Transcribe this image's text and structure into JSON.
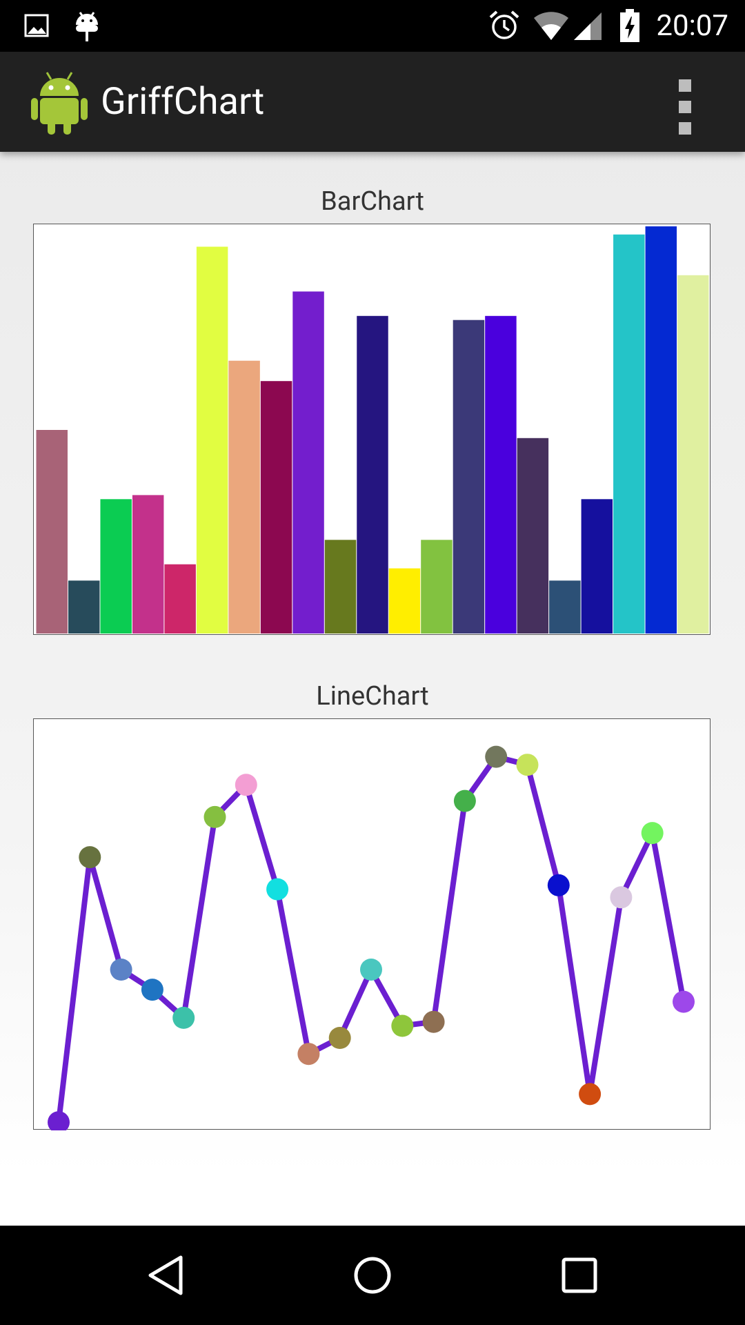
{
  "status_bar": {
    "time": "20:07",
    "icons": [
      "image-notification-icon",
      "android-debug-icon",
      "alarm-icon",
      "wifi-icon",
      "signal-icon",
      "battery-charging-icon"
    ]
  },
  "app_bar": {
    "title": "GriffChart",
    "launcher_icon": "android-robot-icon",
    "overflow_icon": "overflow-menu-icon"
  },
  "bar_chart": {
    "title": "BarChart",
    "chart_data": {
      "type": "bar",
      "title": "BarChart",
      "ylim": [
        0,
        100
      ],
      "values": [
        50,
        13,
        33,
        34,
        17,
        95,
        67,
        62,
        84,
        23,
        78,
        16,
        23,
        77,
        78,
        48,
        13,
        33,
        98,
        100,
        88
      ],
      "colors": [
        "#a86377",
        "#274b5b",
        "#0bcc52",
        "#c3318b",
        "#cd2669",
        "#e1fd41",
        "#eba77d",
        "#8c0850",
        "#731ecd",
        "#67791e",
        "#251580",
        "#ffee00",
        "#82c240",
        "#3b3978",
        "#4a00dd",
        "#46305d",
        "#2c5076",
        "#15109e",
        "#24c4c8",
        "#0429d2",
        "#e0f0a0"
      ]
    }
  },
  "line_chart": {
    "title": "LineChart",
    "chart_data": {
      "type": "line",
      "title": "LineChart",
      "ylim": [
        0,
        100
      ],
      "line_color": "#6b1fd0",
      "values": [
        1,
        67,
        39,
        34,
        27,
        77,
        85,
        59,
        18,
        22,
        39,
        25,
        26,
        81,
        92,
        90,
        60,
        8,
        57,
        73,
        31
      ],
      "point_colors": [
        "#6b1fd0",
        "#67723f",
        "#5b82c6",
        "#1f74c2",
        "#3cc1a9",
        "#85bf40",
        "#f39ed3",
        "#12dfe0",
        "#c48064",
        "#98893d",
        "#4ac7bf",
        "#8ec63b",
        "#8e6f52",
        "#44b04a",
        "#72775d",
        "#c6e35a",
        "#0a10ce",
        "#d04c10",
        "#dac8e0",
        "#73f45f",
        "#9d48ea"
      ]
    }
  },
  "nav_bar": {
    "icons": [
      "back-icon",
      "home-icon",
      "recents-icon"
    ]
  }
}
